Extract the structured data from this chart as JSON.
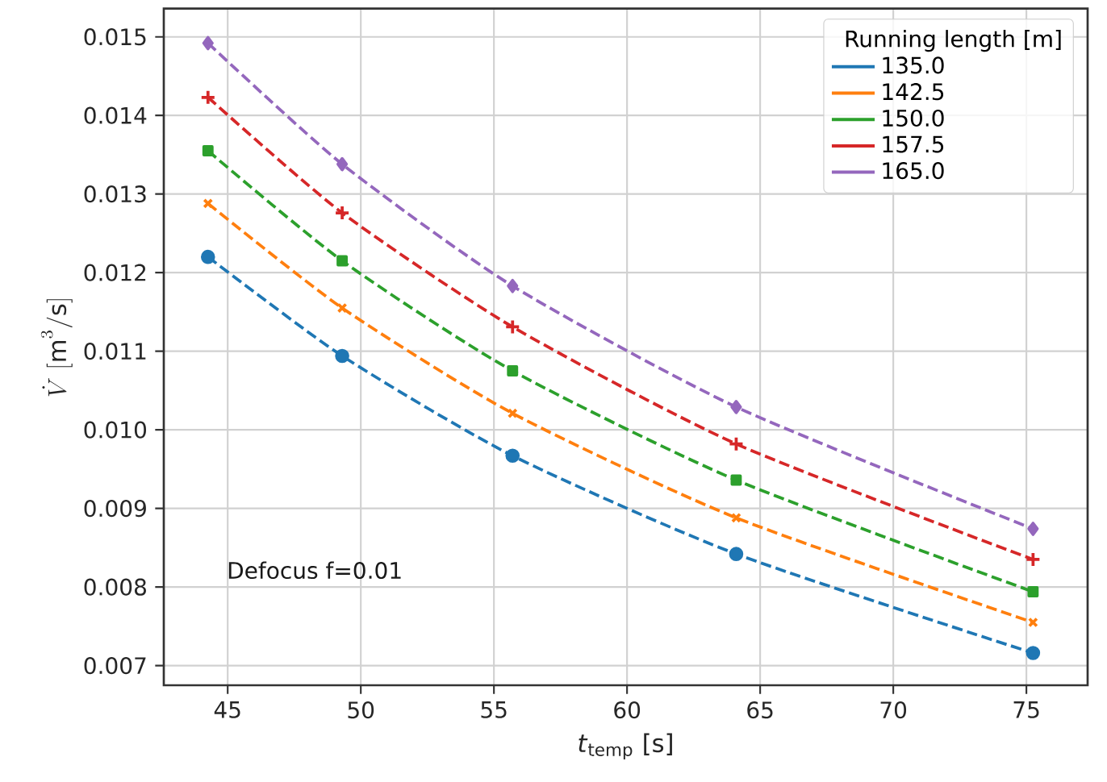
{
  "chart_data": {
    "type": "line",
    "xlabel": "*t*$_{temp}$ [s]",
    "ylabel": "\\dot{V}\\;[\\mathrm{m}^{3}/\\mathrm{s}]",
    "legend_title": "Running length [m]",
    "annotations": [
      "Defocus f=0.01"
    ],
    "xlim": [
      42.6,
      77.3
    ],
    "ylim": [
      0.00675,
      0.01536
    ],
    "xticks": [
      45,
      50,
      55,
      60,
      65,
      70,
      75
    ],
    "yticks": [
      0.007,
      0.008,
      0.009,
      {
        "value": 0.01,
        "label": "0.010"
      },
      0.011,
      0.012,
      0.013,
      0.014,
      0.015
    ],
    "grid": true,
    "legend": "top right",
    "line_style": "dashed",
    "series": [
      {
        "name": "135.0",
        "color": "#1f77b4",
        "marker": "circle",
        "x": [
          44.26,
          49.3,
          55.7,
          64.1,
          75.25
        ],
        "values": [
          0.0122,
          0.01094,
          0.00967,
          0.00842,
          0.00716
        ]
      },
      {
        "name": "142.5",
        "color": "#ff7f0e",
        "marker": "cross",
        "x": [
          44.26,
          49.3,
          55.7,
          64.1,
          75.25
        ],
        "values": [
          0.01288,
          0.01155,
          0.01021,
          0.00888,
          0.00755
        ]
      },
      {
        "name": "150.0",
        "color": "#2ca02c",
        "marker": "square",
        "x": [
          44.26,
          49.3,
          55.7,
          64.1,
          75.25
        ],
        "values": [
          0.01355,
          0.01215,
          0.01075,
          0.00936,
          0.00794
        ]
      },
      {
        "name": "157.5",
        "color": "#d62728",
        "marker": "plus",
        "x": [
          44.26,
          49.3,
          55.7,
          64.1,
          75.25
        ],
        "values": [
          0.01423,
          0.01276,
          0.01131,
          0.00982,
          0.00835
        ]
      },
      {
        "name": "165.0",
        "color": "#9467bd",
        "marker": "diamond",
        "x": [
          44.26,
          49.3,
          55.7,
          64.1,
          75.25
        ],
        "values": [
          0.01492,
          0.01338,
          0.01183,
          0.01029,
          0.00874
        ]
      }
    ]
  }
}
